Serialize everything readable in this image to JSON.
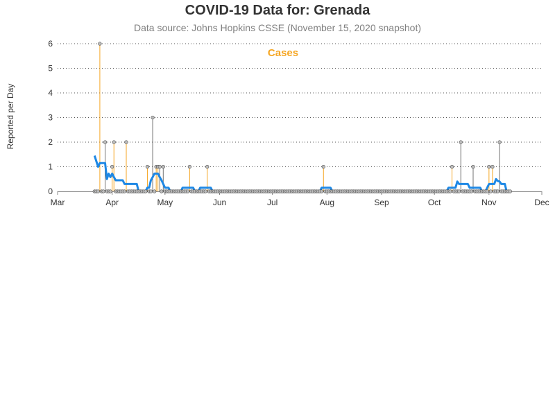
{
  "title": "COVID-19 Data for: Grenada",
  "subtitle": "Data source: Johns Hopkins CSSE (November 15, 2020 snapshot)",
  "chart_data": {
    "type": "line",
    "ylabel": "Reported per Day",
    "xlabel": "",
    "ylim": [
      0,
      6
    ],
    "yticks": [
      0,
      1,
      2,
      3,
      4,
      5,
      6
    ],
    "xlim": [
      "2020-03-01",
      "2020-12-01"
    ],
    "xticks": [
      {
        "label": "Mar",
        "date": "2020-03-01"
      },
      {
        "label": "Apr",
        "date": "2020-04-01"
      },
      {
        "label": "May",
        "date": "2020-05-01"
      },
      {
        "label": "Jun",
        "date": "2020-06-01"
      },
      {
        "label": "Jul",
        "date": "2020-07-01"
      },
      {
        "label": "Aug",
        "date": "2020-08-01"
      },
      {
        "label": "Sep",
        "date": "2020-09-01"
      },
      {
        "label": "Oct",
        "date": "2020-10-01"
      },
      {
        "label": "Nov",
        "date": "2020-11-01"
      },
      {
        "label": "Dec",
        "date": "2020-12-01"
      }
    ],
    "grid": "horizontal dotted",
    "legend_label": "Cases",
    "legend_position": "top-center",
    "colors": {
      "cases": "#f5a623",
      "alt_stem": "#707070",
      "marker_fill": "#bdbdbd",
      "marker_stroke": "#555555",
      "average": "#1e88e5",
      "grid": "#555555",
      "axis": "#888888"
    },
    "points": [
      {
        "date": "2020-03-22",
        "value": 0
      },
      {
        "date": "2020-03-23",
        "value": 0
      },
      {
        "date": "2020-03-24",
        "value": 0
      },
      {
        "date": "2020-03-25",
        "value": 6,
        "stem": "cases"
      },
      {
        "date": "2020-03-26",
        "value": 0
      },
      {
        "date": "2020-03-27",
        "value": 0
      },
      {
        "date": "2020-03-28",
        "value": 2,
        "stem": "alt"
      },
      {
        "date": "2020-03-29",
        "value": 0
      },
      {
        "date": "2020-03-30",
        "value": 0
      },
      {
        "date": "2020-03-31",
        "value": 0
      },
      {
        "date": "2020-04-01",
        "value": 1,
        "stem": "cases"
      },
      {
        "date": "2020-04-02",
        "value": 2,
        "stem": "cases"
      },
      {
        "date": "2020-04-03",
        "value": 0
      },
      {
        "date": "2020-04-04",
        "value": 0
      },
      {
        "date": "2020-04-05",
        "value": 0
      },
      {
        "date": "2020-04-06",
        "value": 0
      },
      {
        "date": "2020-04-07",
        "value": 0
      },
      {
        "date": "2020-04-08",
        "value": 0
      },
      {
        "date": "2020-04-09",
        "value": 2,
        "stem": "cases"
      },
      {
        "date": "2020-04-10",
        "value": 0
      },
      {
        "date": "2020-04-11",
        "value": 0
      },
      {
        "date": "2020-04-12",
        "value": 0
      },
      {
        "date": "2020-04-13",
        "value": 0
      },
      {
        "date": "2020-04-14",
        "value": 0
      },
      {
        "date": "2020-04-15",
        "value": 0
      },
      {
        "date": "2020-04-16",
        "value": 0
      },
      {
        "date": "2020-04-17",
        "value": 0
      },
      {
        "date": "2020-04-18",
        "value": 0
      },
      {
        "date": "2020-04-19",
        "value": 0
      },
      {
        "date": "2020-04-20",
        "value": 0
      },
      {
        "date": "2020-04-21",
        "value": 1,
        "stem": "cases"
      },
      {
        "date": "2020-04-22",
        "value": 0
      },
      {
        "date": "2020-04-23",
        "value": 0
      },
      {
        "date": "2020-04-24",
        "value": 3,
        "stem": "alt"
      },
      {
        "date": "2020-04-25",
        "value": 0
      },
      {
        "date": "2020-04-26",
        "value": 1,
        "stem": "cases"
      },
      {
        "date": "2020-04-27",
        "value": 1,
        "stem": "cases"
      },
      {
        "date": "2020-04-28",
        "value": 1,
        "stem": "alt"
      },
      {
        "date": "2020-04-29",
        "value": 0
      },
      {
        "date": "2020-04-30",
        "value": 1,
        "stem": "alt"
      },
      {
        "date": "2020-05-01",
        "value": 0
      },
      {
        "date": "2020-05-02",
        "value": 0
      },
      {
        "date": "2020-05-03",
        "value": 0
      },
      {
        "date": "2020-05-15",
        "value": 1,
        "stem": "cases"
      },
      {
        "date": "2020-05-25",
        "value": 1,
        "stem": "cases"
      },
      {
        "date": "2020-07-30",
        "value": 1,
        "stem": "cases"
      },
      {
        "date": "2020-10-11",
        "value": 1,
        "stem": "cases"
      },
      {
        "date": "2020-10-16",
        "value": 2,
        "stem": "alt"
      },
      {
        "date": "2020-10-23",
        "value": 1,
        "stem": "alt"
      },
      {
        "date": "2020-11-01",
        "value": 1,
        "stem": "cases"
      },
      {
        "date": "2020-11-03",
        "value": 1,
        "stem": "cases"
      },
      {
        "date": "2020-11-07",
        "value": 2,
        "stem": "alt"
      },
      {
        "date": "2020-11-08",
        "value": 0
      },
      {
        "date": "2020-11-09",
        "value": 0
      },
      {
        "date": "2020-11-10",
        "value": 0
      },
      {
        "date": "2020-11-11",
        "value": 0
      },
      {
        "date": "2020-11-12",
        "value": 0
      },
      {
        "date": "2020-11-13",
        "value": 0
      }
    ],
    "zero_marker_range": [
      "2020-03-22",
      "2020-11-13"
    ],
    "moving_average": [
      [
        "2020-03-22",
        1.45
      ],
      [
        "2020-03-24",
        1.0
      ],
      [
        "2020-03-25",
        1.15
      ],
      [
        "2020-03-28",
        1.15
      ],
      [
        "2020-03-29",
        0.5
      ],
      [
        "2020-03-30",
        0.72
      ],
      [
        "2020-03-31",
        0.58
      ],
      [
        "2020-04-01",
        0.72
      ],
      [
        "2020-04-02",
        0.58
      ],
      [
        "2020-04-03",
        0.45
      ],
      [
        "2020-04-07",
        0.45
      ],
      [
        "2020-04-08",
        0.3
      ],
      [
        "2020-04-15",
        0.3
      ],
      [
        "2020-04-16",
        0.0
      ],
      [
        "2020-04-20",
        0.0
      ],
      [
        "2020-04-21",
        0.15
      ],
      [
        "2020-04-22",
        0.15
      ],
      [
        "2020-04-23",
        0.45
      ],
      [
        "2020-04-24",
        0.58
      ],
      [
        "2020-04-25",
        0.72
      ],
      [
        "2020-04-27",
        0.72
      ],
      [
        "2020-04-28",
        0.58
      ],
      [
        "2020-04-29",
        0.45
      ],
      [
        "2020-04-30",
        0.3
      ],
      [
        "2020-05-01",
        0.15
      ],
      [
        "2020-05-03",
        0.15
      ],
      [
        "2020-05-04",
        0.0
      ],
      [
        "2020-05-10",
        0.0
      ],
      [
        "2020-05-11",
        0.15
      ],
      [
        "2020-05-17",
        0.15
      ],
      [
        "2020-05-18",
        0.0
      ],
      [
        "2020-05-20",
        0.0
      ],
      [
        "2020-05-21",
        0.15
      ],
      [
        "2020-05-27",
        0.15
      ],
      [
        "2020-05-28",
        0.0
      ],
      [
        "2020-07-28",
        0.0
      ],
      [
        "2020-07-29",
        0.15
      ],
      [
        "2020-08-03",
        0.15
      ],
      [
        "2020-08-04",
        0.0
      ],
      [
        "2020-10-08",
        0.0
      ],
      [
        "2020-10-09",
        0.15
      ],
      [
        "2020-10-13",
        0.15
      ],
      [
        "2020-10-14",
        0.4
      ],
      [
        "2020-10-15",
        0.3
      ],
      [
        "2020-10-20",
        0.3
      ],
      [
        "2020-10-21",
        0.15
      ],
      [
        "2020-10-27",
        0.15
      ],
      [
        "2020-10-28",
        0.0
      ],
      [
        "2020-10-30",
        0.0
      ],
      [
        "2020-10-31",
        0.15
      ],
      [
        "2020-11-01",
        0.3
      ],
      [
        "2020-11-04",
        0.3
      ],
      [
        "2020-11-05",
        0.5
      ],
      [
        "2020-11-06",
        0.42
      ],
      [
        "2020-11-07",
        0.4
      ],
      [
        "2020-11-08",
        0.3
      ],
      [
        "2020-11-10",
        0.3
      ],
      [
        "2020-11-11",
        0.0
      ]
    ]
  }
}
